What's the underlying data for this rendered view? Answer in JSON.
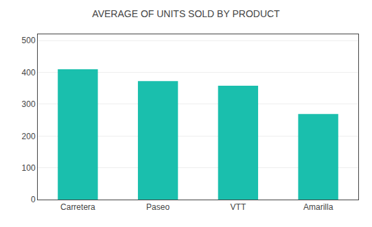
{
  "chart_data": {
    "type": "bar",
    "title": "AVERAGE OF UNITS SOLD BY PRODUCT",
    "categories": [
      "Carretera",
      "Paseo",
      "VTT",
      "Amarilla"
    ],
    "values": [
      410,
      373,
      358,
      269
    ],
    "color": "#1abfad",
    "ylim": [
      0,
      520
    ],
    "yticks": [
      0,
      100,
      200,
      300,
      400,
      500
    ],
    "grid": true
  }
}
